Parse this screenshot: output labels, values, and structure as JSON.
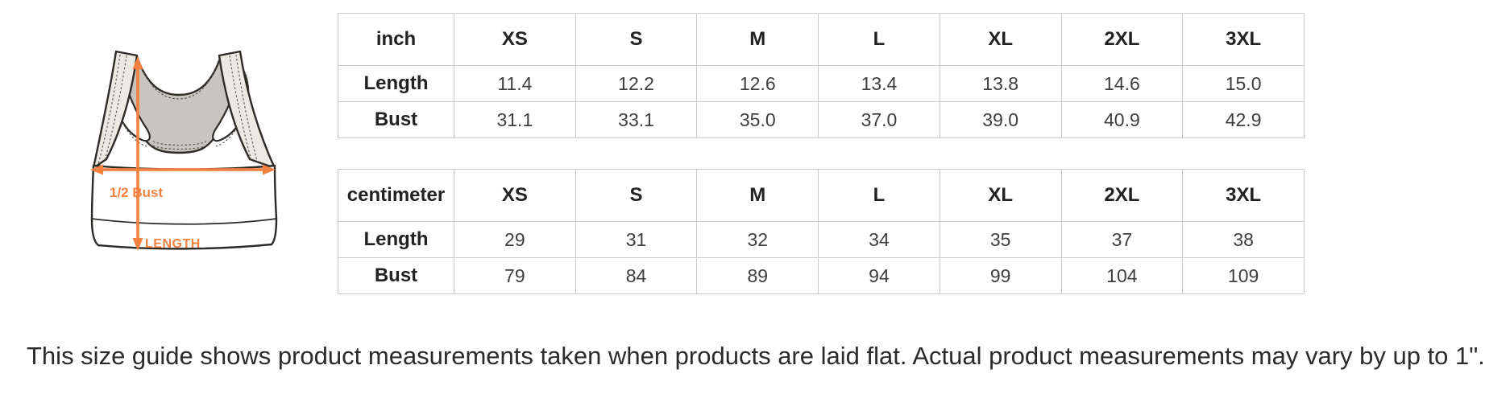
{
  "diagram": {
    "labels": {
      "bust": "1/2 Bust",
      "length": "LENGTH"
    },
    "colors": {
      "arrow": "#F5813E",
      "back_panel": "#C8C4C0",
      "strap_fill": "#ECE8E2",
      "outline": "#2D2A27",
      "stitch": "#5a5550"
    }
  },
  "tables": [
    {
      "unit_header": "inch",
      "size_headers": [
        "XS",
        "S",
        "M",
        "L",
        "XL",
        "2XL",
        "3XL"
      ],
      "rows": [
        {
          "label": "Length",
          "values": [
            "11.4",
            "12.2",
            "12.6",
            "13.4",
            "13.8",
            "14.6",
            "15.0"
          ]
        },
        {
          "label": "Bust",
          "values": [
            "31.1",
            "33.1",
            "35.0",
            "37.0",
            "39.0",
            "40.9",
            "42.9"
          ]
        }
      ]
    },
    {
      "unit_header": "centimeter",
      "size_headers": [
        "XS",
        "S",
        "M",
        "L",
        "XL",
        "2XL",
        "3XL"
      ],
      "rows": [
        {
          "label": "Length",
          "values": [
            "29",
            "31",
            "32",
            "34",
            "35",
            "37",
            "38"
          ]
        },
        {
          "label": "Bust",
          "values": [
            "79",
            "84",
            "89",
            "94",
            "99",
            "104",
            "109"
          ]
        }
      ]
    }
  ],
  "footer": {
    "note": "This size guide shows product measurements taken when products are laid flat. Actual product measurements may vary by up to 1\"."
  }
}
